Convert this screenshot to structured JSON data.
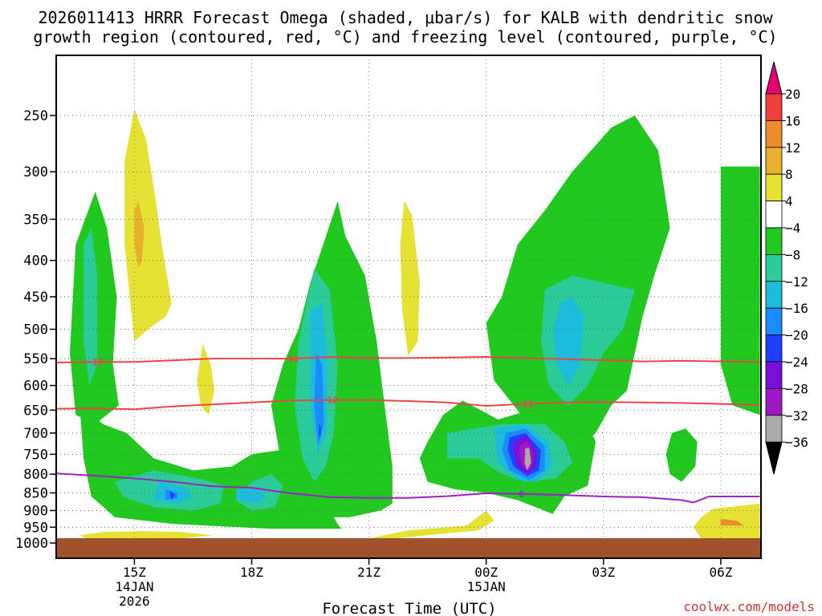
{
  "chart_data": {
    "type": "heatmap",
    "title_line1": "2026011413 HRRR Forecast Omega (shaded, μbar/s) for KALB with dendritic snow",
    "title_line2": "growth region (contoured, red, °C) and freezing level (contoured, purple, °C)",
    "xlabel": "Forecast Time (UTC)",
    "watermark": "coolwx.com/models",
    "y_axis": {
      "scale": "log-pressure",
      "units": "hPa",
      "range": [
        1000,
        200
      ],
      "ticks": [
        "250",
        "300",
        "350",
        "400",
        "450",
        "500",
        "550",
        "600",
        "650",
        "700",
        "750",
        "800",
        "850",
        "900",
        "950",
        "1000"
      ]
    },
    "x_axis": {
      "units": "hours since 2026-01-14 13Z",
      "range": [
        0,
        18
      ],
      "ticks": [
        {
          "h": 2,
          "label": "15Z",
          "sub1": "14JAN",
          "sub2": "2026"
        },
        {
          "h": 5,
          "label": "18Z",
          "sub1": "",
          "sub2": ""
        },
        {
          "h": 8,
          "label": "21Z",
          "sub1": "",
          "sub2": ""
        },
        {
          "h": 11,
          "label": "00Z",
          "sub1": "15JAN",
          "sub2": ""
        },
        {
          "h": 14,
          "label": "03Z",
          "sub1": "",
          "sub2": ""
        },
        {
          "h": 17,
          "label": "06Z",
          "sub1": "",
          "sub2": ""
        }
      ]
    },
    "colorbar": {
      "labels": [
        "20",
        "16",
        "12",
        "8",
        "4",
        "−4",
        "−8",
        "−12",
        "−16",
        "−20",
        "−24",
        "−28",
        "−32",
        "−36"
      ],
      "colors": [
        "#e60073",
        "#ef3f3f",
        "#ec8c2c",
        "#e8b02c",
        "#e6e233",
        "#ffffff",
        "#21c81f",
        "#2bcb9a",
        "#1ebcdc",
        "#1a8cff",
        "#2040ff",
        "#7a10d8",
        "#a018c4",
        "#aaaaaa",
        "#000000"
      ]
    },
    "contours": [
      {
        "name": "dgz-minus-18",
        "label": "-18",
        "color": "#e84545",
        "points": [
          [
            0,
            557
          ],
          [
            1.0,
            556
          ],
          [
            2.0,
            556
          ],
          [
            3.0,
            553
          ],
          [
            4.0,
            550
          ],
          [
            5.0,
            550
          ],
          [
            6.0,
            550
          ],
          [
            7.0,
            547
          ],
          [
            8.0,
            549
          ],
          [
            9.0,
            549
          ],
          [
            10.0,
            548
          ],
          [
            11.0,
            547
          ],
          [
            12.0,
            549
          ],
          [
            13.0,
            551
          ],
          [
            14.0,
            553
          ],
          [
            15.0,
            555
          ],
          [
            16.0,
            554
          ],
          [
            17.0,
            555
          ],
          [
            18.0,
            556
          ]
        ]
      },
      {
        "name": "dgz-minus-12",
        "label": "-12",
        "color": "#e84545",
        "points": [
          [
            0,
            647
          ],
          [
            1.0,
            646
          ],
          [
            2.0,
            648
          ],
          [
            3.0,
            642
          ],
          [
            4.0,
            638
          ],
          [
            5.0,
            634
          ],
          [
            6.0,
            630
          ],
          [
            7.0,
            629
          ],
          [
            8.0,
            629
          ],
          [
            9.0,
            631
          ],
          [
            10.0,
            634
          ],
          [
            11.0,
            641
          ],
          [
            12.0,
            637
          ],
          [
            13.0,
            634
          ],
          [
            14.0,
            633
          ],
          [
            15.0,
            634
          ],
          [
            16.0,
            635
          ],
          [
            17.0,
            637
          ],
          [
            18.0,
            639
          ]
        ]
      },
      {
        "name": "freezing-level-0",
        "label": "0",
        "color": "#9a22c8",
        "points": [
          [
            0,
            798
          ],
          [
            1.0,
            804
          ],
          [
            2.0,
            811
          ],
          [
            3.0,
            820
          ],
          [
            4.0,
            832
          ],
          [
            5.0,
            836
          ],
          [
            6.0,
            851
          ],
          [
            7.0,
            862
          ],
          [
            8.0,
            864
          ],
          [
            9.0,
            864
          ],
          [
            10.0,
            859
          ],
          [
            11.0,
            851
          ],
          [
            12.0,
            853
          ],
          [
            13.0,
            856
          ],
          [
            14.0,
            860
          ],
          [
            15.0,
            862
          ],
          [
            16.0,
            870
          ],
          [
            16.3,
            877
          ],
          [
            16.7,
            860
          ],
          [
            17.0,
            860
          ],
          [
            18.0,
            860
          ]
        ]
      }
    ],
    "omega_regions": [
      {
        "value_band": "4 to 8",
        "color": "#e6e233",
        "center": {
          "h": 2.1,
          "p": 345
        },
        "extent_hours": [
          1.7,
          3.0
        ],
        "extent_p": [
          245,
          520
        ]
      },
      {
        "value_band": "8 to 12",
        "color": "#e8b02c",
        "center": {
          "h": 2.1,
          "p": 370
        },
        "extent_hours": [
          1.9,
          2.3
        ],
        "extent_p": [
          330,
          410
        ]
      },
      {
        "value_band": "4 to 8",
        "color": "#e6e233",
        "center": {
          "h": 3.8,
          "p": 590
        },
        "extent_hours": [
          3.6,
          4.1
        ],
        "extent_p": [
          520,
          660
        ]
      },
      {
        "value_band": "4 to 8",
        "color": "#e6e233",
        "center": {
          "h": 9.0,
          "p": 430
        },
        "extent_hours": [
          8.8,
          9.3
        ],
        "extent_p": [
          330,
          540
        ]
      },
      {
        "value_band": "4 to 8",
        "color": "#e6e233",
        "center": {
          "h": 9.6,
          "p": 945
        },
        "extent_hours": [
          8.0,
          11.2
        ],
        "extent_p": [
          890,
          985
        ]
      },
      {
        "value_band": "4 to 8",
        "color": "#e6e233",
        "center": {
          "h": 1.5,
          "p": 975
        },
        "extent_hours": [
          0.6,
          4.0
        ],
        "extent_p": [
          960,
          990
        ]
      },
      {
        "value_band": "4 to 12",
        "color": "#e6e233",
        "center": {
          "h": 17.2,
          "p": 935
        },
        "extent_hours": [
          16.3,
          18.0
        ],
        "extent_p": [
          880,
          985
        ]
      },
      {
        "value_band": "-4 to -8",
        "color": "#21c81f",
        "center": {
          "h": 1.0,
          "p": 520
        },
        "extent_hours": [
          0.4,
          1.6
        ],
        "extent_p": [
          320,
          680
        ]
      },
      {
        "value_band": "-4 to -16",
        "color": "#21c81f",
        "center": {
          "h": 4.5,
          "p": 780
        },
        "extent_hours": [
          0.6,
          8.7
        ],
        "extent_p": [
          650,
          950
        ]
      },
      {
        "value_band": "-4 to -24",
        "color": "#21c81f",
        "center": {
          "h": 6.9,
          "p": 600
        },
        "extent_hours": [
          5.5,
          8.6
        ],
        "extent_p": [
          330,
          950
        ]
      },
      {
        "value_band": "-4 to -16",
        "color": "#21c81f",
        "center": {
          "h": 13.6,
          "p": 500
        },
        "extent_hours": [
          11.0,
          15.5
        ],
        "extent_p": [
          245,
          900
        ]
      },
      {
        "value_band": "-4 to -8",
        "color": "#21c81f",
        "center": {
          "h": 17.8,
          "p": 430
        },
        "extent_hours": [
          17.0,
          18.0
        ],
        "extent_p": [
          295,
          660
        ]
      },
      {
        "value_band": "-4 to -8",
        "color": "#21c81f",
        "center": {
          "h": 15.9,
          "p": 760
        },
        "extent_hours": [
          15.6,
          16.4
        ],
        "extent_p": [
          690,
          820
        ]
      },
      {
        "value_band": "-4 to -36",
        "color": "#21c81f",
        "center": {
          "h": 12.1,
          "p": 760
        },
        "extent_hours": [
          9.3,
          13.7
        ],
        "extent_p": [
          620,
          910
        ]
      },
      {
        "value_band": "-28 to -36",
        "color": "#aaaaaa",
        "center": {
          "h": 12.1,
          "p": 760
        },
        "extent_hours": [
          12.0,
          12.2
        ],
        "extent_p": [
          735,
          790
        ]
      }
    ],
    "surface_color": "#a0522d"
  }
}
